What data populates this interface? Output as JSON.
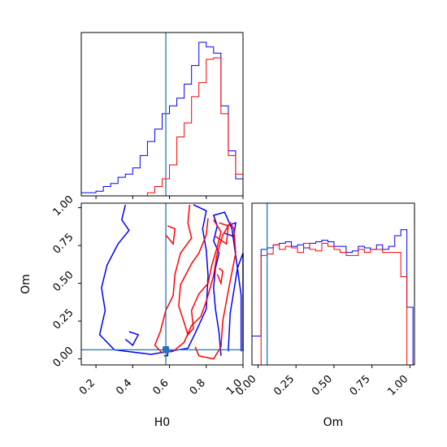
{
  "chart_data": {
    "type": "corner",
    "parameters": [
      "H0",
      "Om"
    ],
    "colors": {
      "blue": "#0000ff",
      "red": "#ff0000",
      "truth": "#1f77b4"
    },
    "truth": {
      "H0": 0.58,
      "Om": 0.06
    },
    "panels": {
      "h0_hist": {
        "xlim": [
          0.12,
          1.0
        ],
        "ticks": [
          0.2,
          0.4,
          0.6,
          0.8,
          1.0
        ],
        "bin_edges": [
          0.12,
          0.16,
          0.2,
          0.24,
          0.28,
          0.32,
          0.36,
          0.4,
          0.44,
          0.48,
          0.52,
          0.56,
          0.6,
          0.64,
          0.68,
          0.72,
          0.76,
          0.8,
          0.84,
          0.88,
          0.92,
          0.96,
          1.0
        ],
        "series": [
          {
            "color": "blue",
            "counts": [
              0.02,
              0.02,
              0.03,
              0.06,
              0.08,
              0.12,
              0.14,
              0.18,
              0.26,
              0.35,
              0.43,
              0.53,
              0.58,
              0.63,
              0.72,
              0.84,
              0.99,
              0.96,
              0.92,
              0.58,
              0.29,
              0.11
            ]
          },
          {
            "color": "red",
            "counts": [
              0,
              0,
              0,
              0,
              0,
              0,
              0,
              0,
              0,
              0.02,
              0.06,
              0.11,
              0.2,
              0.38,
              0.47,
              0.64,
              0.73,
              0.88,
              0.89,
              0.53,
              0.26,
              0.14
            ]
          }
        ]
      },
      "joint": {
        "xlim": [
          0.12,
          1.0
        ],
        "ylim": [
          -0.04,
          1.03
        ],
        "xticks": [
          0.2,
          0.4,
          0.6,
          0.8,
          1.0
        ],
        "yticks": [
          0.0,
          0.25,
          0.5,
          0.75,
          1.0
        ],
        "xticklabels": [
          "0.2",
          "0.4",
          "0.6",
          "0.8",
          "1.0"
        ],
        "yticklabels": [
          "0.00",
          "0.25",
          "0.50",
          "0.75",
          "1.00"
        ],
        "xlabel": "H0",
        "ylabel": "Om",
        "contours": [
          {
            "color": "blue",
            "points": [
              [
                0.36,
                1.02
              ],
              [
                0.34,
                0.92
              ],
              [
                0.38,
                0.85
              ],
              [
                0.32,
                0.76
              ],
              [
                0.26,
                0.62
              ],
              [
                0.23,
                0.47
              ],
              [
                0.25,
                0.32
              ],
              [
                0.22,
                0.16
              ],
              [
                0.3,
                0.06
              ],
              [
                0.5,
                0.03
              ],
              [
                0.7,
                0.07
              ],
              [
                0.74,
                0.17
              ],
              [
                0.8,
                0.33
              ],
              [
                0.81,
                0.55
              ],
              [
                0.8,
                0.72
              ],
              [
                0.78,
                0.86
              ],
              [
                0.8,
                0.98
              ],
              [
                0.73,
                1.02
              ]
            ]
          },
          {
            "color": "blue",
            "points": [
              [
                0.88,
                0.02
              ],
              [
                0.87,
                0.17
              ],
              [
                0.85,
                0.33
              ],
              [
                0.84,
                0.47
              ],
              [
                0.85,
                0.6
              ],
              [
                0.87,
                0.7
              ],
              [
                0.84,
                0.78
              ],
              [
                0.86,
                0.88
              ],
              [
                0.84,
                0.95
              ],
              [
                0.9,
                0.97
              ],
              [
                0.94,
                0.86
              ],
              [
                0.97,
                0.6
              ],
              [
                0.99,
                0.42
              ],
              [
                0.99,
                0.05
              ]
            ]
          },
          {
            "color": "blue",
            "points": [
              [
                0.92,
                0.05
              ],
              [
                0.93,
                0.3
              ],
              [
                0.97,
                0.6
              ],
              [
                1.0,
                0.7
              ],
              [
                1.0,
                0.05
              ]
            ]
          },
          {
            "color": "blue",
            "points": [
              [
                0.36,
                0.13
              ],
              [
                0.4,
                0.09
              ],
              [
                0.43,
                0.16
              ],
              [
                0.38,
                0.18
              ]
            ]
          },
          {
            "color": "blue",
            "points": [
              [
                0.9,
                0.83
              ],
              [
                0.95,
                0.81
              ],
              [
                0.96,
                0.9
              ],
              [
                0.91,
                0.88
              ]
            ]
          },
          {
            "color": "blue",
            "points": [
              [
                0.57,
                0.02
              ],
              [
                0.59,
                0.02
              ],
              [
                0.59,
                0.08
              ],
              [
                0.57,
                0.08
              ]
            ]
          },
          {
            "color": "red",
            "points": [
              [
                0.71,
                1.02
              ],
              [
                0.7,
                0.9
              ],
              [
                0.72,
                0.8
              ],
              [
                0.66,
                0.7
              ],
              [
                0.63,
                0.56
              ],
              [
                0.62,
                0.42
              ],
              [
                0.58,
                0.32
              ],
              [
                0.55,
                0.18
              ],
              [
                0.52,
                0.09
              ],
              [
                0.56,
                0.04
              ],
              [
                0.62,
                0.05
              ],
              [
                0.68,
                0.11
              ],
              [
                0.72,
                0.22
              ],
              [
                0.77,
                0.28
              ],
              [
                0.8,
                0.38
              ],
              [
                0.84,
                0.55
              ],
              [
                0.86,
                0.7
              ],
              [
                0.89,
                0.82
              ],
              [
                0.93,
                0.9
              ],
              [
                0.95,
                0.86
              ],
              [
                0.96,
                0.7
              ],
              [
                0.92,
                0.45
              ],
              [
                0.89,
                0.25
              ],
              [
                0.88,
                0.08
              ],
              [
                0.84,
                0.0
              ],
              [
                0.76,
                0.02
              ],
              [
                0.74,
                0.08
              ]
            ]
          },
          {
            "color": "red",
            "points": [
              [
                0.81,
                0.93
              ],
              [
                0.8,
                0.82
              ],
              [
                0.76,
                0.7
              ],
              [
                0.72,
                0.63
              ],
              [
                0.66,
                0.49
              ],
              [
                0.65,
                0.35
              ],
              [
                0.68,
                0.24
              ],
              [
                0.7,
                0.16
              ],
              [
                0.73,
                0.2
              ],
              [
                0.72,
                0.32
              ],
              [
                0.76,
                0.43
              ],
              [
                0.81,
                0.5
              ],
              [
                0.83,
                0.62
              ],
              [
                0.86,
                0.74
              ],
              [
                0.88,
                0.84
              ],
              [
                0.84,
                0.92
              ]
            ]
          },
          {
            "color": "red",
            "points": [
              [
                0.85,
                0.81
              ],
              [
                0.91,
                0.76
              ],
              [
                0.92,
                0.88
              ],
              [
                0.87,
                0.9
              ]
            ]
          },
          {
            "color": "red",
            "points": [
              [
                0.86,
                0.56
              ],
              [
                0.88,
                0.5
              ],
              [
                0.89,
                0.58
              ],
              [
                0.87,
                0.6
              ]
            ]
          },
          {
            "color": "red",
            "points": [
              [
                0.58,
                0.82
              ],
              [
                0.62,
                0.76
              ],
              [
                0.63,
                0.86
              ],
              [
                0.59,
                0.88
              ]
            ]
          }
        ]
      },
      "om_hist": {
        "xlim": [
          -0.04,
          1.03
        ],
        "ticks": [
          0.0,
          0.25,
          0.5,
          0.75,
          1.0
        ],
        "ticklabels": [
          "0.00",
          "0.25",
          "0.50",
          "0.75",
          "1.00"
        ],
        "xlabel": "Om",
        "bin_edges": [
          -0.04,
          0.02,
          0.06,
          0.1,
          0.14,
          0.18,
          0.22,
          0.26,
          0.3,
          0.34,
          0.38,
          0.42,
          0.46,
          0.5,
          0.54,
          0.58,
          0.62,
          0.66,
          0.7,
          0.74,
          0.78,
          0.82,
          0.86,
          0.9,
          0.94,
          0.98,
          1.02
        ],
        "series": [
          {
            "color": "blue",
            "counts": [
              0.19,
              0.76,
              0.77,
              0.79,
              0.8,
              0.81,
              0.78,
              0.79,
              0.77,
              0.8,
              0.81,
              0.82,
              0.81,
              0.78,
              0.78,
              0.74,
              0.75,
              0.78,
              0.77,
              0.76,
              0.79,
              0.76,
              0.78,
              0.85,
              0.89,
              0.38
            ]
          },
          {
            "color": "red",
            "counts": [
              0.0,
              0.72,
              0.73,
              0.79,
              0.76,
              0.78,
              0.77,
              0.74,
              0.8,
              0.76,
              0.75,
              0.8,
              0.78,
              0.76,
              0.74,
              0.72,
              0.72,
              0.76,
              0.74,
              0.76,
              0.76,
              0.74,
              0.74,
              0.74,
              0.58,
              0.0
            ]
          }
        ]
      }
    }
  }
}
